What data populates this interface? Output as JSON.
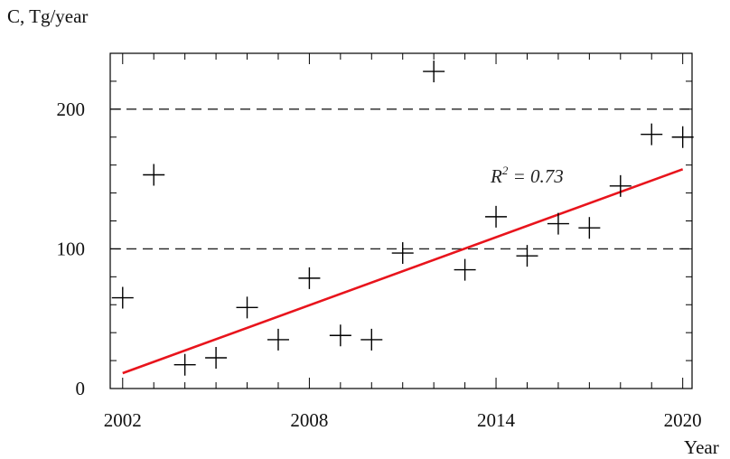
{
  "chart_data": {
    "type": "scatter",
    "ylabel": "C, Tg/year",
    "xlabel": "Year",
    "xlim": [
      2001.6,
      2020.3
    ],
    "ylim": [
      0,
      240
    ],
    "x_ticks": [
      "2002",
      "2008",
      "2014",
      "2020"
    ],
    "y_ticks": [
      "0",
      "100",
      "200"
    ],
    "reference_lines_y": [
      100,
      200
    ],
    "series": [
      {
        "marker": "plus",
        "color": "#000000",
        "points": [
          {
            "x": 2002,
            "y": 65
          },
          {
            "x": 2003,
            "y": 153
          },
          {
            "x": 2004,
            "y": 17
          },
          {
            "x": 2005,
            "y": 22
          },
          {
            "x": 2006,
            "y": 58
          },
          {
            "x": 2007,
            "y": 35
          },
          {
            "x": 2008,
            "y": 79
          },
          {
            "x": 2009,
            "y": 38
          },
          {
            "x": 2010,
            "y": 35
          },
          {
            "x": 2011,
            "y": 97
          },
          {
            "x": 2012,
            "y": 227
          },
          {
            "x": 2013,
            "y": 85
          },
          {
            "x": 2014,
            "y": 123
          },
          {
            "x": 2015,
            "y": 95
          },
          {
            "x": 2016,
            "y": 118
          },
          {
            "x": 2017,
            "y": 115
          },
          {
            "x": 2018,
            "y": 145
          },
          {
            "x": 2019,
            "y": 182
          },
          {
            "x": 2020,
            "y": 180
          }
        ]
      }
    ],
    "trend_line": {
      "color": "#e8141c",
      "from": {
        "x": 2002,
        "y": 11
      },
      "to": {
        "x": 2020,
        "y": 157
      }
    },
    "annotation": {
      "r_label": "R",
      "r_exp": "2",
      "r_value": " = 0.73"
    },
    "grid": false
  }
}
